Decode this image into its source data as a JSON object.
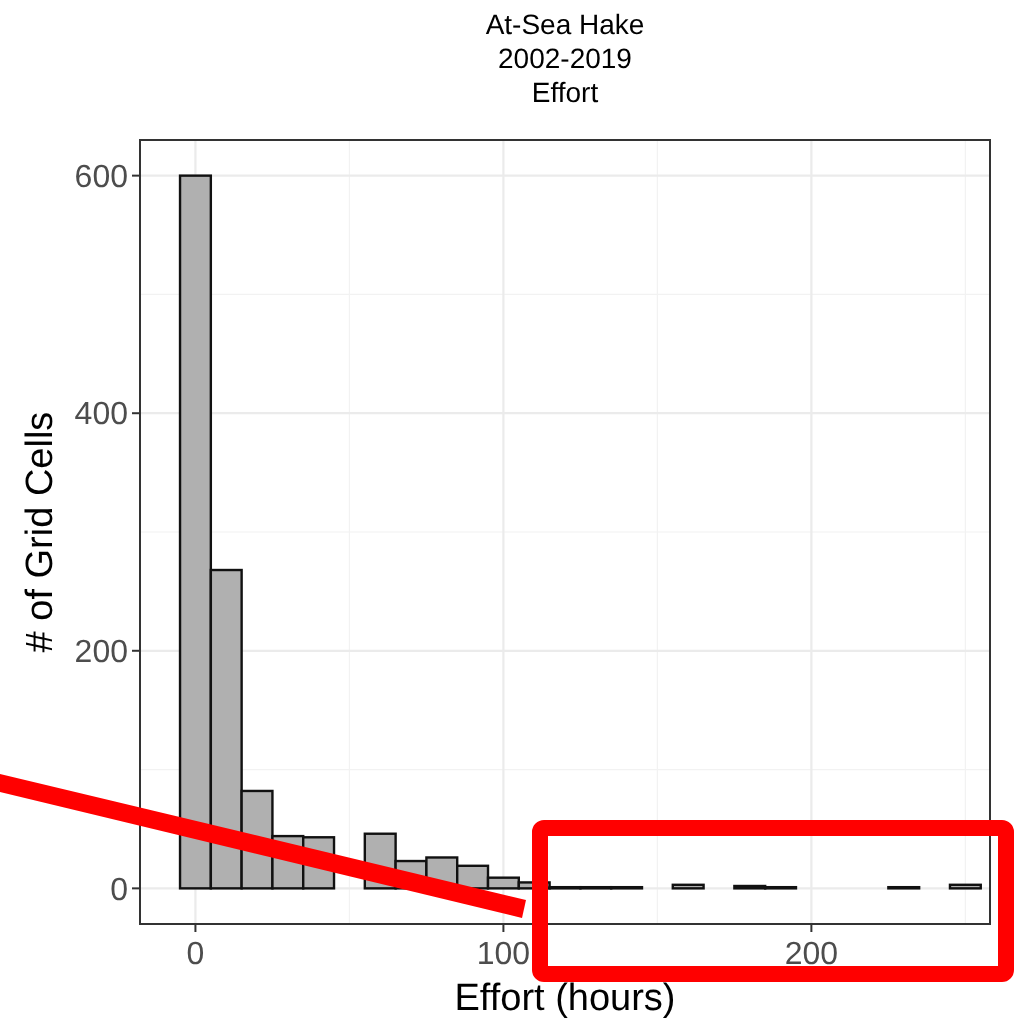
{
  "chart_data": {
    "type": "histogram",
    "title": "At-Sea Hake\n2002-2019\nEffort",
    "xlabel": "Effort (hours)",
    "ylabel": "# of Grid Cells",
    "bins": [
      -5,
      5,
      15,
      25,
      35,
      45,
      55,
      65,
      75,
      85,
      95,
      105,
      115,
      125,
      135,
      145,
      155,
      165,
      175,
      185,
      195,
      205,
      215,
      225,
      235,
      245,
      255
    ],
    "values": [
      600,
      268,
      82,
      44,
      43,
      null,
      46,
      23,
      26,
      19,
      9,
      5,
      1,
      1,
      1,
      0,
      3,
      0,
      2,
      1,
      0,
      0,
      0,
      1,
      0,
      3
    ],
    "color": "#b0b0b0",
    "xlim": [
      -18,
      258
    ],
    "ylim": [
      -30,
      630
    ],
    "xticks": [
      0,
      100,
      200
    ],
    "yticks": [
      0,
      200,
      400,
      600
    ],
    "grid": true
  }
}
